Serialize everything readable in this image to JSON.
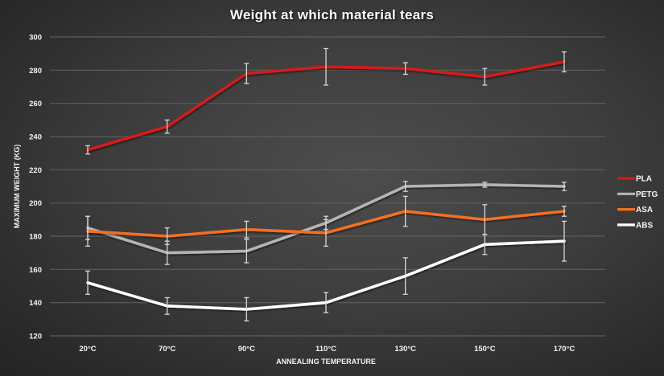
{
  "chart_data": {
    "type": "line",
    "title": "Weight at which material tears",
    "xlabel": "ANNEALING TEMPERATURE",
    "ylabel": "MAXIMUM WEIGHT (KG)",
    "categories": [
      "20°C",
      "70°C",
      "90°C",
      "110°C",
      "130°C",
      "150°C",
      "170°C"
    ],
    "ylim": [
      120,
      300
    ],
    "yticks": [
      120,
      140,
      160,
      180,
      200,
      220,
      240,
      260,
      280,
      300
    ],
    "grid": true,
    "legend_position": "right",
    "series": [
      {
        "name": "PLA",
        "color": "#d41a1a",
        "values": [
          232,
          246,
          278,
          282,
          281,
          276,
          285
        ],
        "errors": [
          2.5,
          4,
          6,
          11,
          3.5,
          5,
          6
        ]
      },
      {
        "name": "PETG",
        "color": "#b4b4b4",
        "values": [
          185,
          170,
          171,
          188,
          210,
          211,
          210
        ],
        "errors": [
          7,
          7,
          7,
          4,
          3,
          1.5,
          2.5
        ]
      },
      {
        "name": "ASA",
        "color": "#f07020",
        "values": [
          183,
          180,
          184,
          182,
          195,
          190,
          195
        ],
        "errors": [
          9,
          5,
          5,
          8,
          9,
          9,
          3
        ]
      },
      {
        "name": "ABS",
        "color": "#ffffff",
        "values": [
          152,
          138,
          136,
          140,
          156,
          175,
          177
        ],
        "errors": [
          7,
          5,
          7,
          6,
          11,
          6,
          12
        ]
      }
    ]
  }
}
